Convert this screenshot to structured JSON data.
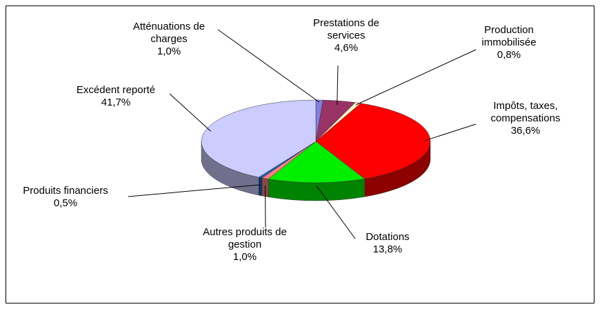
{
  "chart_data": {
    "type": "pie3d",
    "categories": [
      "Atténuations de charges",
      "Prestations de services",
      "Production immobilisée",
      "Impôts, taxes, compensations",
      "Dotations",
      "Autres produits de gestion",
      "Produits financiers",
      "Excédent reporté"
    ],
    "values": [
      1.0,
      4.6,
      0.8,
      36.6,
      13.8,
      1.0,
      0.5,
      41.7
    ],
    "value_labels": [
      "1,0%",
      "4,6%",
      "0,8%",
      "36,6%",
      "13,8%",
      "1,0%",
      "0,5%",
      "41,7%"
    ],
    "colors": [
      "#7f7fe0",
      "#993366",
      "#ffffcc",
      "#ff0000",
      "#00ee00",
      "#ff8080",
      "#1060c0",
      "#ccccff"
    ]
  }
}
